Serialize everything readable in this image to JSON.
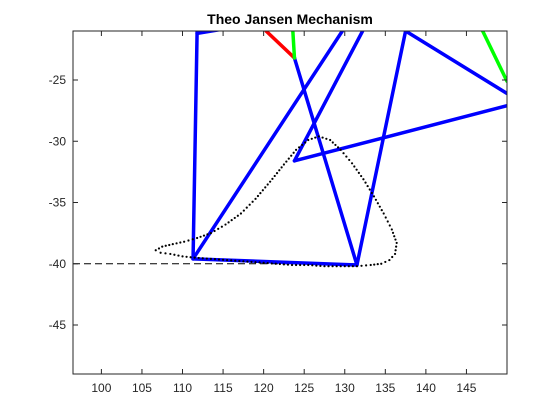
{
  "chart_data": {
    "type": "line",
    "title": "Theo Jansen Mechanism",
    "xlabel": "",
    "ylabel": "",
    "xlim": [
      96.5,
      150
    ],
    "ylim": [
      -49,
      -21
    ],
    "xticks": [
      100,
      105,
      110,
      115,
      120,
      125,
      130,
      135,
      140,
      145
    ],
    "yticks": [
      -25,
      -30,
      -35,
      -40,
      -45
    ],
    "grid": false,
    "legend": "none",
    "ground_line": {
      "y": -40,
      "x": [
        96.5,
        131.5
      ],
      "style": "dashed",
      "color": "#000000"
    },
    "series": [
      {
        "kind": "segments",
        "color": "#0000ff",
        "segments": [
          [
            [
              111.3,
              -39.6
            ],
            [
              111.8,
              -21
            ]
          ],
          [
            [
              111.8,
              -21.2
            ],
            [
              114.5,
              -20.9
            ]
          ],
          [
            [
              111.3,
              -39.6
            ],
            [
              129.7,
              -21
            ]
          ],
          [
            [
              111.3,
              -39.6
            ],
            [
              131.5,
              -40.1
            ]
          ],
          [
            [
              131.5,
              -40.1
            ],
            [
              123.8,
              -23.2
            ]
          ],
          [
            [
              131.5,
              -40.1
            ],
            [
              137.5,
              -21
            ]
          ],
          [
            [
              123.8,
              -31.6
            ],
            [
              132.2,
              -21
            ]
          ],
          [
            [
              123.8,
              -31.6
            ],
            [
              150,
              -27.1
            ]
          ],
          [
            [
              150,
              -26.1
            ],
            [
              137.5,
              -21
            ]
          ]
        ]
      },
      {
        "kind": "segments",
        "color": "#ff0000",
        "segments": [
          [
            [
              120.3,
              -21
            ],
            [
              123.8,
              -23.2
            ]
          ]
        ]
      },
      {
        "kind": "segments",
        "color": "#00ff00",
        "segments": [
          [
            [
              123.6,
              -21
            ],
            [
              123.8,
              -23.2
            ]
          ],
          [
            [
              147.0,
              -21
            ],
            [
              150,
              -25.1
            ]
          ]
        ]
      },
      {
        "kind": "trace",
        "color": "#000000",
        "marker": "dot",
        "points": [
          [
            106.7,
            -38.9
          ],
          [
            107.5,
            -38.6
          ],
          [
            108.8,
            -38.4
          ],
          [
            110.2,
            -38.2
          ],
          [
            111.8,
            -37.9
          ],
          [
            113.5,
            -37.5
          ],
          [
            115.3,
            -36.8
          ],
          [
            117.2,
            -35.9
          ],
          [
            119.0,
            -34.7
          ],
          [
            120.8,
            -33.3
          ],
          [
            122.5,
            -31.9
          ],
          [
            124.0,
            -30.7
          ],
          [
            125.5,
            -29.9
          ],
          [
            126.8,
            -29.6
          ],
          [
            128.2,
            -29.9
          ],
          [
            129.5,
            -30.7
          ],
          [
            130.9,
            -31.8
          ],
          [
            132.3,
            -33.1
          ],
          [
            133.6,
            -34.5
          ],
          [
            134.8,
            -35.9
          ],
          [
            135.8,
            -37.2
          ],
          [
            136.4,
            -38.3
          ],
          [
            136.2,
            -39.2
          ],
          [
            135.5,
            -39.7
          ],
          [
            134.5,
            -40.0
          ],
          [
            133.2,
            -40.1
          ],
          [
            131.5,
            -40.2
          ],
          [
            129.5,
            -40.2
          ],
          [
            127.5,
            -40.2
          ],
          [
            125.5,
            -40.1
          ],
          [
            123.5,
            -40.1
          ],
          [
            121.5,
            -40.0
          ],
          [
            119.5,
            -39.9
          ],
          [
            117.5,
            -39.8
          ],
          [
            115.5,
            -39.7
          ],
          [
            113.5,
            -39.6
          ],
          [
            111.5,
            -39.5
          ],
          [
            110.0,
            -39.4
          ],
          [
            108.5,
            -39.2
          ],
          [
            107.3,
            -39.1
          ],
          [
            106.7,
            -38.9
          ]
        ]
      }
    ]
  }
}
